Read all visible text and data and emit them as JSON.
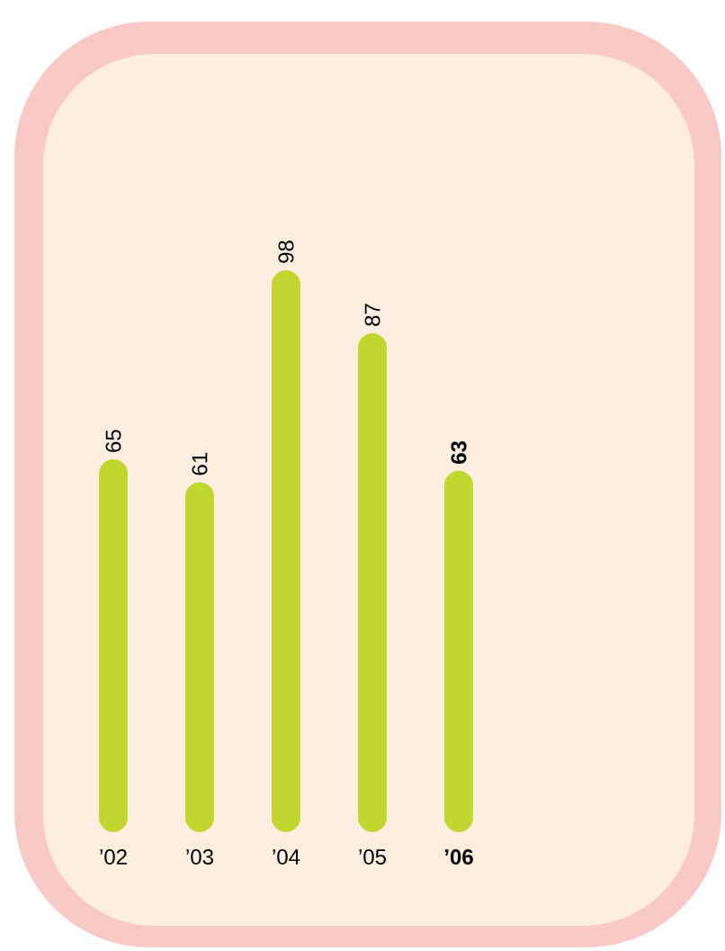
{
  "chart_data": {
    "type": "bar",
    "categories": [
      "’02",
      "’03",
      "’04",
      "’05",
      "’06"
    ],
    "values": [
      65,
      61,
      98,
      87,
      63
    ],
    "color": "#c0d72f",
    "data_labels": true
  }
}
